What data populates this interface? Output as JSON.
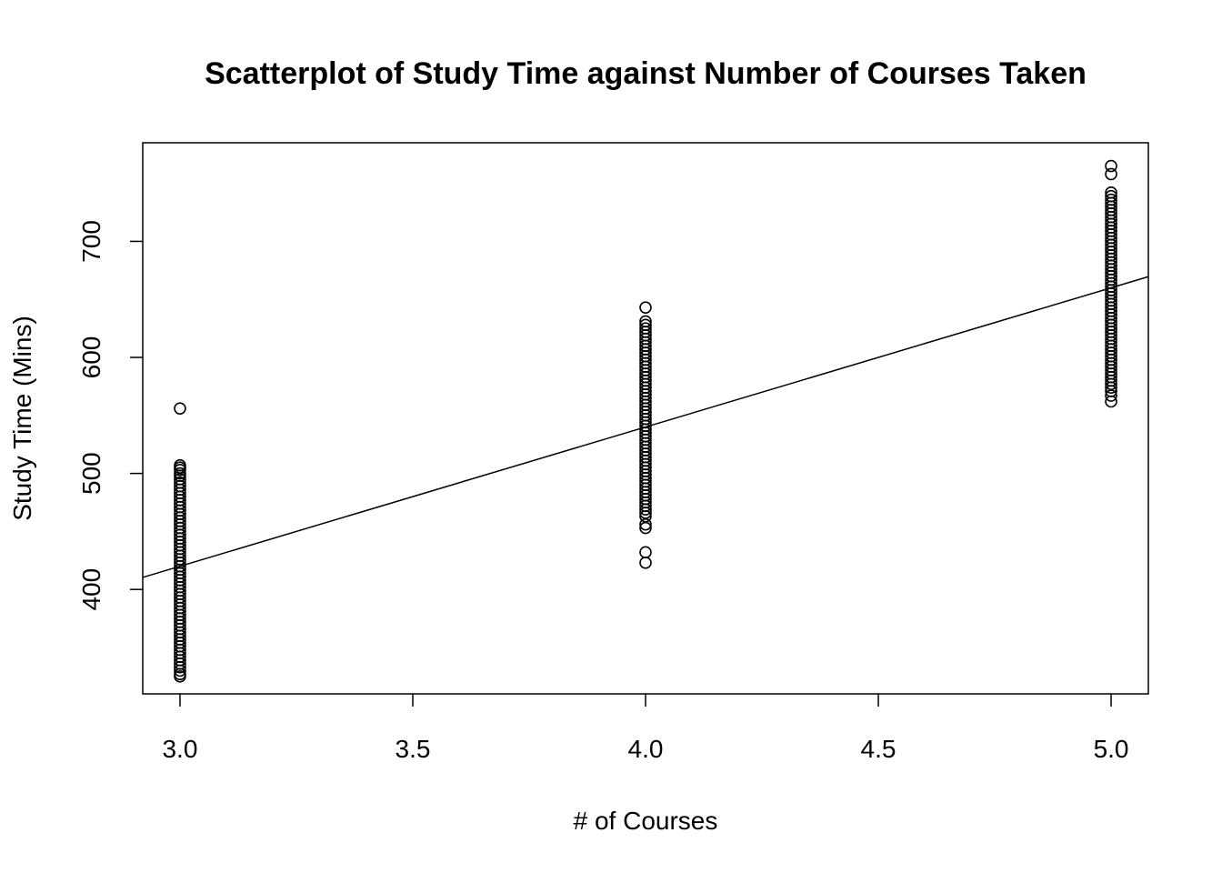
{
  "chart_data": {
    "type": "scatter",
    "title": "Scatterplot of Study Time against Number of Courses Taken",
    "xlabel": "# of Courses",
    "ylabel": "Study Time (Mins)",
    "xlim": [
      2.92,
      5.08
    ],
    "ylim": [
      310,
      785
    ],
    "x_ticks": [
      3.0,
      3.5,
      4.0,
      4.5,
      5.0
    ],
    "x_tick_labels": [
      "3.0",
      "3.5",
      "4.0",
      "4.5",
      "5.0"
    ],
    "y_ticks": [
      400,
      500,
      600,
      700
    ],
    "y_tick_labels": [
      "400",
      "500",
      "600",
      "700"
    ],
    "grid": false,
    "legend": "none",
    "marker": "open-circle",
    "point_color": "#000000",
    "series": [
      {
        "x": 3,
        "values": [
          556,
          507,
          505,
          503,
          500,
          498,
          495,
          492,
          489,
          486,
          483,
          480,
          477,
          474,
          471,
          468,
          465,
          462,
          459,
          456,
          453,
          450,
          447,
          444,
          441,
          438,
          435,
          432,
          429,
          426,
          423,
          420,
          417,
          414,
          411,
          408,
          405,
          402,
          399,
          396,
          393,
          390,
          387,
          384,
          381,
          378,
          375,
          372,
          369,
          366,
          363,
          360,
          357,
          354,
          351,
          348,
          345,
          342,
          339,
          336,
          333,
          330,
          327,
          325
        ]
      },
      {
        "x": 4,
        "values": [
          643,
          631,
          628,
          625,
          622,
          619,
          616,
          613,
          610,
          607,
          604,
          601,
          598,
          595,
          592,
          589,
          586,
          583,
          580,
          577,
          574,
          571,
          568,
          565,
          562,
          559,
          556,
          553,
          550,
          547,
          544,
          541,
          538,
          535,
          532,
          529,
          526,
          523,
          520,
          517,
          514,
          511,
          508,
          505,
          502,
          499,
          496,
          493,
          490,
          487,
          484,
          481,
          478,
          475,
          472,
          469,
          466,
          463,
          456,
          453,
          432,
          423
        ]
      },
      {
        "x": 5,
        "values": [
          765,
          758,
          742,
          739,
          736,
          733,
          730,
          727,
          724,
          721,
          718,
          715,
          712,
          709,
          706,
          703,
          700,
          697,
          694,
          691,
          688,
          685,
          682,
          679,
          676,
          673,
          670,
          667,
          664,
          661,
          658,
          655,
          652,
          649,
          646,
          643,
          640,
          637,
          634,
          631,
          628,
          625,
          622,
          619,
          616,
          613,
          610,
          607,
          604,
          601,
          598,
          595,
          592,
          589,
          586,
          583,
          580,
          577,
          574,
          571,
          567,
          562
        ]
      }
    ],
    "regression_line": {
      "intercept": 60,
      "slope": 120,
      "color": "#000000"
    }
  }
}
